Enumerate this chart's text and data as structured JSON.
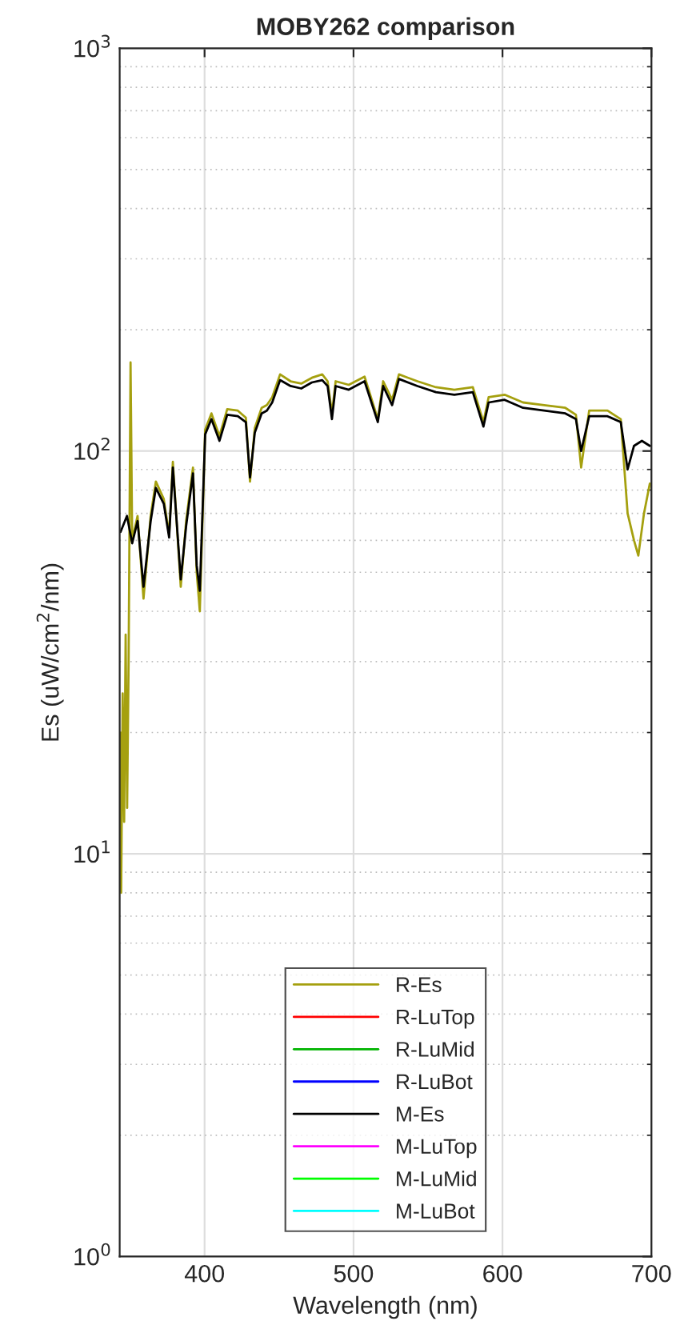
{
  "chart_data": {
    "type": "line",
    "title": "MOBY262 comparison",
    "xlabel": "Wavelength (nm)",
    "ylabel": "Es (uW/cm$^{2}$/nm)",
    "xlim": [
      343,
      700
    ],
    "xticks": [
      400,
      500,
      600,
      700
    ],
    "log": "y",
    "ylim": [
      1,
      1000
    ],
    "yticks": [
      {
        "value": 1,
        "label": "10$^{0}$"
      },
      {
        "value": 10,
        "label": "10$^{1}$"
      },
      {
        "value": 100,
        "label": "10$^{2}$"
      },
      {
        "value": 1000,
        "label": "10$^{3}$"
      }
    ],
    "grid": true,
    "legend": "bottom",
    "line_style": "solid",
    "marker": "none",
    "series": [
      {
        "name": "R-Es",
        "color": "#a5a00f",
        "x": [
          343.5,
          344,
          345,
          346,
          347,
          348,
          349,
          350.3,
          351.4,
          355,
          359,
          363.8,
          367.3,
          372.6,
          376.2,
          378.7,
          384,
          387.6,
          392.2,
          394.7,
          396.8,
          400.4,
          404.6,
          410,
          415.2,
          422.3,
          427.7,
          430.5,
          433.7,
          438.3,
          441.8,
          445.4,
          450.7,
          457.7,
          464.9,
          472,
          479,
          482.6,
          485.5,
          488,
          496.8,
          507.4,
          516.3,
          519.9,
          525.9,
          530.5,
          542.9,
          555.3,
          567.7,
          580.1,
          587.2,
          590.7,
          601.4,
          613.8,
          628,
          642.2,
          649.3,
          652.8,
          658.2,
          670.5,
          679.4,
          684,
          688.3,
          691.2,
          695,
          698.9
        ],
        "values": [
          20,
          8,
          25,
          12,
          35,
          13,
          30,
          166,
          60,
          69,
          43,
          69,
          84,
          76,
          62,
          94,
          46,
          67,
          91,
          50,
          40,
          113,
          124,
          109,
          127,
          126,
          121,
          84,
          114,
          128,
          130,
          136,
          155,
          149,
          147,
          152,
          155,
          149,
          124,
          149,
          146,
          153,
          120,
          149,
          134,
          155,
          149,
          144,
          142,
          144,
          118,
          136,
          138,
          132,
          130,
          128,
          123,
          91,
          126,
          126,
          120,
          70,
          60,
          55,
          70,
          83
        ]
      },
      {
        "name": "R-LuTop",
        "color": "#ff0000",
        "values": [
          null,
          null
        ]
      },
      {
        "name": "R-LuMid",
        "color": "#00b400",
        "values": [
          null,
          null
        ]
      },
      {
        "name": "R-LuBot",
        "color": "#0000ff",
        "values": [
          null,
          null
        ]
      },
      {
        "name": "M-Es",
        "color": "#000000",
        "x": [
          343.6,
          347.9,
          351.4,
          355,
          359,
          363.8,
          367.3,
          372.6,
          376.2,
          378.7,
          384,
          387.6,
          392.2,
          394.7,
          396.8,
          400.4,
          404.6,
          410,
          415.2,
          422.3,
          427.7,
          430.5,
          433.7,
          438.3,
          441.8,
          445.4,
          450.7,
          457.7,
          464.9,
          472,
          479,
          482.6,
          485.5,
          488,
          496.8,
          507.4,
          516.3,
          519.9,
          525.9,
          530.5,
          542.9,
          555.3,
          567.7,
          580.1,
          587.2,
          590.7,
          601.4,
          613.8,
          628,
          642.2,
          649.3,
          652.8,
          658.2,
          670.5,
          679.4,
          684,
          688.3,
          693.6,
          698.9
        ],
        "values": [
          63,
          69,
          59,
          67,
          46,
          67,
          81,
          74,
          61,
          91,
          48,
          65,
          88,
          52,
          45,
          110,
          120,
          106,
          123,
          122,
          118,
          86,
          111,
          124,
          126,
          132,
          150,
          145,
          143,
          148,
          150,
          145,
          120,
          145,
          142,
          149,
          118,
          145,
          130,
          151,
          145,
          140,
          138,
          140,
          115,
          132,
          134,
          128,
          126,
          124,
          120,
          100,
          122,
          122,
          118,
          90,
          103,
          106,
          103
        ]
      },
      {
        "name": "M-LuTop",
        "color": "#ff00ff",
        "values": [
          null,
          null
        ]
      },
      {
        "name": "M-LuMid",
        "color": "#00ff00",
        "values": [
          null,
          null
        ]
      },
      {
        "name": "M-LuBot",
        "color": "#00ffff",
        "values": [
          null,
          null
        ]
      }
    ]
  }
}
